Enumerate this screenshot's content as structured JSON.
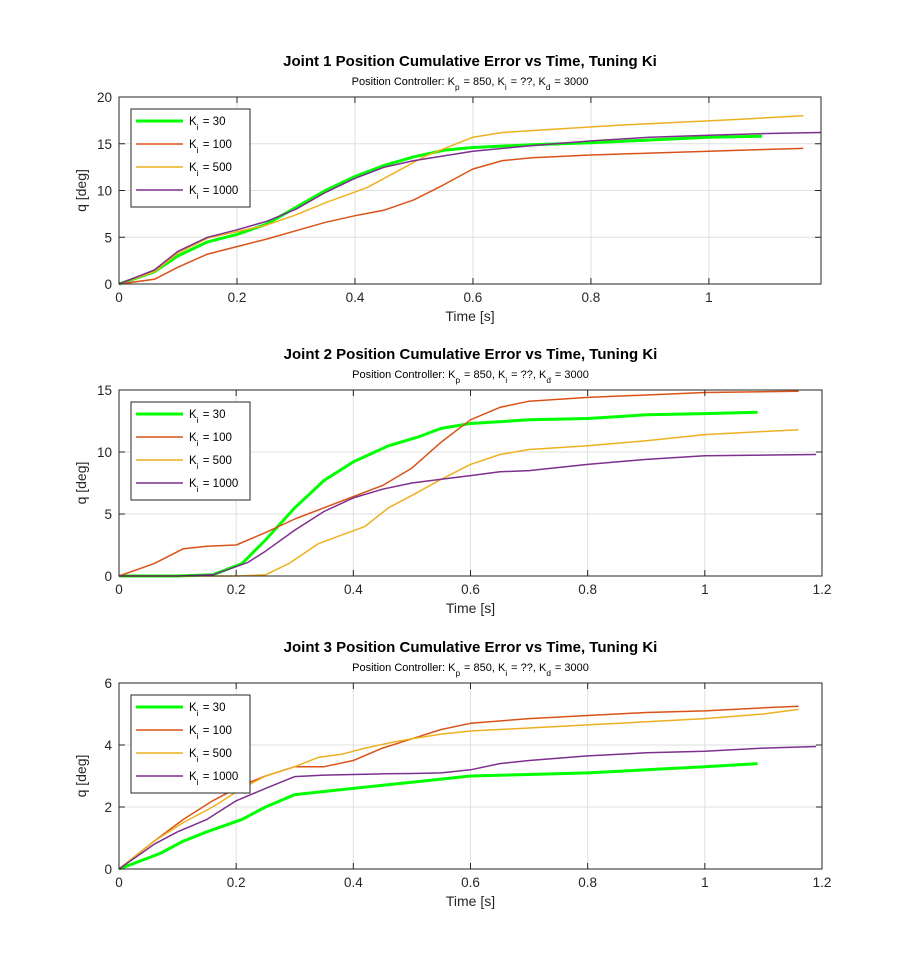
{
  "chart_data": [
    {
      "type": "line",
      "title": "Joint 1 Position Cumulative Error vs Time, Tuning Ki",
      "subtitle": "Position Controller: K_p = 850, K_i = ??, K_d = 3000",
      "xlabel": "Time [s]",
      "ylabel": "q [deg]",
      "xlim": [
        0,
        1.19
      ],
      "ylim": [
        0,
        20
      ],
      "xticks": [
        0,
        0.2,
        0.4,
        0.6,
        0.8,
        1
      ],
      "yticks": [
        0,
        5,
        10,
        15,
        20
      ],
      "grid": true,
      "legend_position": "top-left",
      "series": [
        {
          "name": "K_i = 30",
          "color": "#00ff00",
          "width": 3,
          "x": [
            0,
            0.06,
            0.1,
            0.15,
            0.2,
            0.25,
            0.3,
            0.35,
            0.4,
            0.45,
            0.5,
            0.55,
            0.6,
            0.7,
            0.8,
            0.9,
            1.0,
            1.09
          ],
          "y": [
            0,
            1.3,
            3.0,
            4.5,
            5.3,
            6.4,
            8.2,
            10.0,
            11.5,
            12.7,
            13.6,
            14.3,
            14.6,
            14.9,
            15.1,
            15.4,
            15.7,
            15.8
          ]
        },
        {
          "name": "K_i = 100",
          "color": "#d95319",
          "width": 1.5,
          "x": [
            0,
            0.06,
            0.1,
            0.15,
            0.2,
            0.25,
            0.3,
            0.35,
            0.4,
            0.45,
            0.5,
            0.55,
            0.6,
            0.65,
            0.7,
            0.8,
            0.9,
            1.0,
            1.1,
            1.16
          ],
          "y": [
            0,
            0.5,
            1.8,
            3.2,
            4.0,
            4.8,
            5.7,
            6.6,
            7.3,
            7.9,
            9.0,
            10.6,
            12.3,
            13.2,
            13.5,
            13.8,
            14.0,
            14.2,
            14.4,
            14.5
          ]
        },
        {
          "name": "K_i = 500",
          "color": "#edb120",
          "width": 1.5,
          "x": [
            0,
            0.06,
            0.1,
            0.15,
            0.2,
            0.25,
            0.3,
            0.35,
            0.42,
            0.47,
            0.52,
            0.6,
            0.65,
            0.75,
            0.85,
            0.95,
            1.05,
            1.16
          ],
          "y": [
            0,
            1.3,
            3.3,
            4.9,
            5.6,
            6.3,
            7.4,
            8.7,
            10.3,
            12.0,
            13.7,
            15.7,
            16.2,
            16.6,
            17.0,
            17.3,
            17.6,
            18.0
          ]
        },
        {
          "name": "K_i = 1000",
          "color": "#7e2f8e",
          "width": 1.5,
          "x": [
            0,
            0.06,
            0.1,
            0.15,
            0.2,
            0.25,
            0.3,
            0.35,
            0.4,
            0.45,
            0.5,
            0.6,
            0.7,
            0.8,
            0.9,
            1.0,
            1.1,
            1.19
          ],
          "y": [
            0,
            1.5,
            3.5,
            5.0,
            5.8,
            6.7,
            8.0,
            9.8,
            11.3,
            12.5,
            13.2,
            14.2,
            14.8,
            15.3,
            15.7,
            15.9,
            16.1,
            16.2
          ]
        }
      ]
    },
    {
      "type": "line",
      "title": "Joint 2 Position Cumulative Error vs Time, Tuning Ki",
      "subtitle": "Position Controller: K_p = 850, K_i = ??, K_d = 3000",
      "xlabel": "Time [s]",
      "ylabel": "q [deg]",
      "xlim": [
        0,
        1.2
      ],
      "ylim": [
        0,
        15
      ],
      "xticks": [
        0,
        0.2,
        0.4,
        0.6,
        0.8,
        1,
        1.2
      ],
      "yticks": [
        0,
        5,
        10,
        15
      ],
      "grid": true,
      "legend_position": "top-left",
      "series": [
        {
          "name": "K_i = 30",
          "color": "#00ff00",
          "width": 3,
          "x": [
            0,
            0.1,
            0.16,
            0.21,
            0.25,
            0.3,
            0.35,
            0.4,
            0.46,
            0.51,
            0.55,
            0.6,
            0.7,
            0.8,
            0.9,
            1.0,
            1.09
          ],
          "y": [
            0,
            0,
            0.1,
            1.0,
            2.9,
            5.5,
            7.7,
            9.2,
            10.5,
            11.2,
            11.9,
            12.3,
            12.6,
            12.7,
            13.0,
            13.1,
            13.2
          ]
        },
        {
          "name": "K_i = 100",
          "color": "#d95319",
          "width": 1.5,
          "x": [
            0,
            0.06,
            0.11,
            0.15,
            0.2,
            0.25,
            0.3,
            0.35,
            0.4,
            0.45,
            0.5,
            0.55,
            0.6,
            0.65,
            0.7,
            0.8,
            0.9,
            1.0,
            1.16
          ],
          "y": [
            0,
            1.0,
            2.2,
            2.4,
            2.5,
            3.5,
            4.6,
            5.5,
            6.4,
            7.3,
            8.7,
            10.8,
            12.6,
            13.6,
            14.1,
            14.4,
            14.6,
            14.8,
            14.9
          ]
        },
        {
          "name": "K_i = 500",
          "color": "#edb120",
          "width": 1.5,
          "x": [
            0,
            0.2,
            0.25,
            0.29,
            0.34,
            0.38,
            0.42,
            0.46,
            0.5,
            0.55,
            0.6,
            0.65,
            0.7,
            0.8,
            0.9,
            1.0,
            1.16
          ],
          "y": [
            0,
            0,
            0.1,
            1.0,
            2.6,
            3.3,
            4.0,
            5.5,
            6.5,
            7.8,
            9.0,
            9.8,
            10.2,
            10.5,
            10.9,
            11.4,
            11.8
          ]
        },
        {
          "name": "K_i = 1000",
          "color": "#7e2f8e",
          "width": 1.5,
          "x": [
            0,
            0.1,
            0.16,
            0.22,
            0.25,
            0.3,
            0.35,
            0.4,
            0.45,
            0.5,
            0.55,
            0.6,
            0.65,
            0.7,
            0.8,
            0.9,
            1.0,
            1.19
          ],
          "y": [
            0,
            0,
            0.1,
            1.1,
            2.0,
            3.7,
            5.2,
            6.3,
            7.0,
            7.5,
            7.8,
            8.1,
            8.4,
            8.5,
            9.0,
            9.4,
            9.7,
            9.8
          ]
        }
      ]
    },
    {
      "type": "line",
      "title": "Joint 3 Position Cumulative Error vs Time, Tuning Ki",
      "subtitle": "Position Controller: K_p = 850, K_i = ??, K_d = 3000",
      "xlabel": "Time [s]",
      "ylabel": "q [deg]",
      "xlim": [
        0,
        1.2
      ],
      "ylim": [
        0,
        6
      ],
      "xticks": [
        0,
        0.2,
        0.4,
        0.6,
        0.8,
        1,
        1.2
      ],
      "yticks": [
        0,
        2,
        4,
        6
      ],
      "grid": true,
      "legend_position": "top-left",
      "series": [
        {
          "name": "K_i = 30",
          "color": "#00ff00",
          "width": 3,
          "x": [
            0,
            0.07,
            0.11,
            0.15,
            0.21,
            0.25,
            0.3,
            0.35,
            0.4,
            0.45,
            0.5,
            0.55,
            0.6,
            0.7,
            0.8,
            0.9,
            1.0,
            1.09
          ],
          "y": [
            0,
            0.5,
            0.9,
            1.2,
            1.6,
            2.0,
            2.4,
            2.5,
            2.6,
            2.7,
            2.8,
            2.9,
            3.0,
            3.05,
            3.1,
            3.2,
            3.3,
            3.4
          ]
        },
        {
          "name": "K_i = 100",
          "color": "#d95319",
          "width": 1.5,
          "x": [
            0,
            0.06,
            0.11,
            0.16,
            0.21,
            0.25,
            0.3,
            0.35,
            0.4,
            0.45,
            0.5,
            0.55,
            0.6,
            0.7,
            0.8,
            0.9,
            1.0,
            1.1,
            1.16
          ],
          "y": [
            0,
            0.9,
            1.6,
            2.2,
            2.7,
            3.0,
            3.3,
            3.3,
            3.5,
            3.9,
            4.2,
            4.5,
            4.7,
            4.85,
            4.95,
            5.05,
            5.1,
            5.2,
            5.25
          ]
        },
        {
          "name": "K_i = 500",
          "color": "#edb120",
          "width": 1.5,
          "x": [
            0,
            0.06,
            0.11,
            0.16,
            0.21,
            0.25,
            0.3,
            0.34,
            0.38,
            0.42,
            0.47,
            0.5,
            0.55,
            0.6,
            0.7,
            0.8,
            0.9,
            1.0,
            1.1,
            1.16
          ],
          "y": [
            0,
            0.9,
            1.5,
            2.0,
            2.6,
            3.0,
            3.3,
            3.6,
            3.7,
            3.9,
            4.1,
            4.2,
            4.35,
            4.45,
            4.55,
            4.65,
            4.75,
            4.85,
            5.0,
            5.15
          ]
        },
        {
          "name": "K_i = 1000",
          "color": "#7e2f8e",
          "width": 1.5,
          "x": [
            0,
            0.06,
            0.1,
            0.15,
            0.2,
            0.25,
            0.3,
            0.35,
            0.4,
            0.45,
            0.5,
            0.55,
            0.6,
            0.65,
            0.7,
            0.8,
            0.9,
            1.0,
            1.1,
            1.19
          ],
          "y": [
            0,
            0.8,
            1.2,
            1.6,
            2.2,
            2.6,
            2.98,
            3.03,
            3.05,
            3.07,
            3.08,
            3.1,
            3.2,
            3.4,
            3.5,
            3.65,
            3.75,
            3.8,
            3.9,
            3.95
          ]
        }
      ]
    }
  ]
}
